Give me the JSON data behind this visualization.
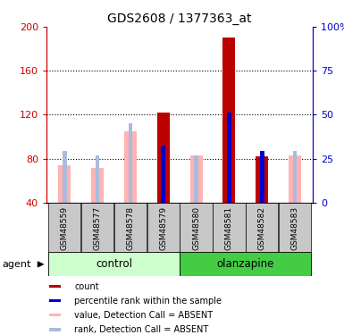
{
  "title": "GDS2608 / 1377363_at",
  "samples": [
    "GSM48559",
    "GSM48577",
    "GSM48578",
    "GSM48579",
    "GSM48580",
    "GSM48581",
    "GSM48582",
    "GSM48583"
  ],
  "ylim_left": [
    40,
    200
  ],
  "ylim_right": [
    0,
    100
  ],
  "yticks_left": [
    40,
    80,
    120,
    160,
    200
  ],
  "yticks_right": [
    0,
    25,
    50,
    75,
    100
  ],
  "absent_value": [
    74,
    72,
    105,
    null,
    83,
    null,
    null,
    83
  ],
  "absent_rank": [
    87,
    83,
    112,
    null,
    83,
    null,
    null,
    87
  ],
  "count_value": [
    null,
    null,
    null,
    122,
    null,
    190,
    82,
    null
  ],
  "percentile_rank": [
    null,
    null,
    null,
    92,
    null,
    122,
    87,
    null
  ],
  "absent_value_color": "#FFB3B3",
  "absent_rank_color": "#AABBDD",
  "count_color": "#BB0000",
  "percentile_color": "#0000CC",
  "left_tick_color": "#CC0000",
  "right_tick_color": "#0000CC",
  "grid_color": "#000000",
  "sample_bg": "#C8C8C8",
  "control_bg": "#CCFFCC",
  "olanz_bg": "#44CC44",
  "legend_items": [
    {
      "color": "#BB0000",
      "label": "count"
    },
    {
      "color": "#0000CC",
      "label": "percentile rank within the sample"
    },
    {
      "color": "#FFB3B3",
      "label": "value, Detection Call = ABSENT"
    },
    {
      "color": "#AABBDD",
      "label": "rank, Detection Call = ABSENT"
    }
  ]
}
